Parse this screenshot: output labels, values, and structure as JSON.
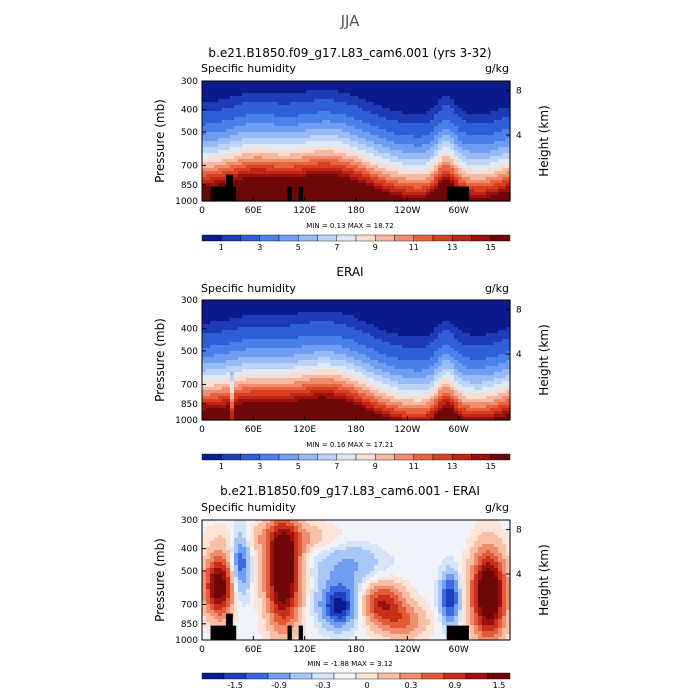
{
  "figure_title": "JJA",
  "chart_data": [
    {
      "type": "heatmap",
      "title": "b.e21.B1850.f09_g17.L83_cam6.001 (yrs 3-32)",
      "left_label": "Specific humidity",
      "units": "g/kg",
      "xlabel": "",
      "ylabel": "Pressure (mb)",
      "ylabel_right": "Height (km)",
      "x_ticks": [
        "0",
        "60E",
        "120E",
        "180",
        "120W",
        "60W"
      ],
      "y_ticks": [
        "300",
        "400",
        "500",
        "700",
        "850",
        "1000"
      ],
      "y_ticks_right": [
        "8",
        "4"
      ],
      "min_max": "MIN =    0.13   MAX =   18.72",
      "colorbar_labels": [
        "1",
        "3",
        "5",
        "7",
        "9",
        "11",
        "13",
        "15"
      ],
      "colorbar_colors": [
        "#0b1a8c",
        "#1d3bb5",
        "#2e5fd6",
        "#4a80ea",
        "#6f9df2",
        "#97bbf6",
        "#bdd4f7",
        "#e0eaf7",
        "#f8ddd0",
        "#f5b8a0",
        "#f08d6e",
        "#e8633f",
        "#d8401f",
        "#c02516",
        "#9c1010",
        "#6e0707"
      ],
      "data_range": [
        0.13,
        18.72
      ]
    },
    {
      "type": "heatmap",
      "title": "ERAI",
      "left_label": "Specific humidity",
      "units": "g/kg",
      "ylabel": "Pressure (mb)",
      "ylabel_right": "Height (km)",
      "x_ticks": [
        "0",
        "60E",
        "120E",
        "180",
        "120W",
        "60W"
      ],
      "y_ticks": [
        "300",
        "400",
        "500",
        "700",
        "850",
        "1000"
      ],
      "y_ticks_right": [
        "8",
        "4"
      ],
      "min_max": "MIN =    0.16   MAX =   17.21",
      "colorbar_labels": [
        "1",
        "3",
        "5",
        "7",
        "9",
        "11",
        "13",
        "15"
      ],
      "colorbar_colors": [
        "#0b1a8c",
        "#1d3bb5",
        "#2e5fd6",
        "#4a80ea",
        "#6f9df2",
        "#97bbf6",
        "#bdd4f7",
        "#e0eaf7",
        "#f8ddd0",
        "#f5b8a0",
        "#f08d6e",
        "#e8633f",
        "#d8401f",
        "#c02516",
        "#9c1010",
        "#6e0707"
      ],
      "data_range": [
        0.16,
        17.21
      ]
    },
    {
      "type": "heatmap",
      "title": "b.e21.B1850.f09_g17.L83_cam6.001 - ERAI",
      "left_label": "Specific humidity",
      "units": "g/kg",
      "ylabel": "Pressure (mb)",
      "ylabel_right": "Height (km)",
      "x_ticks": [
        "0",
        "60E",
        "120E",
        "180",
        "120W",
        "60W"
      ],
      "y_ticks": [
        "300",
        "400",
        "500",
        "700",
        "850",
        "1000"
      ],
      "y_ticks_right": [
        "8",
        "4"
      ],
      "min_max": "MIN =  -1.88   MAX =   3.12",
      "colorbar_labels": [
        "-1.5",
        "-0.9",
        "-0.3",
        "0",
        "0.3",
        "0.9",
        "1.5"
      ],
      "colorbar_colors": [
        "#0b1a8c",
        "#1f3fbf",
        "#3a6adf",
        "#6f9df2",
        "#a8c6f6",
        "#d6e4f7",
        "#f0f4fa",
        "#fde4d6",
        "#f8bfa4",
        "#f08d6e",
        "#e25a36",
        "#c9301a",
        "#9c1010",
        "#6e0707"
      ],
      "data_range": [
        -1.88,
        3.12
      ]
    }
  ]
}
